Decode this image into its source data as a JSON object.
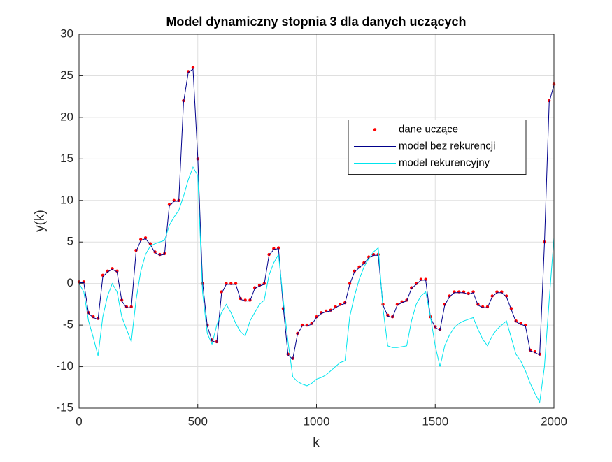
{
  "chart_data": {
    "type": "line",
    "title": "Model dynamiczny stopnia 3 dla danych uczących",
    "x_label": "k",
    "y_label": "y(k)",
    "xlim": [
      0,
      2000
    ],
    "xticks": [
      0,
      500,
      1000,
      1500,
      2000
    ],
    "ylim": [
      -15,
      30
    ],
    "yticks": [
      -15,
      -10,
      -5,
      0,
      5,
      10,
      15,
      20,
      25,
      30
    ],
    "grid": true,
    "legend_location": "east",
    "x": [
      0,
      20,
      40,
      60,
      80,
      100,
      120,
      140,
      160,
      180,
      200,
      220,
      240,
      260,
      280,
      300,
      320,
      340,
      360,
      380,
      400,
      420,
      440,
      460,
      480,
      500,
      520,
      540,
      560,
      580,
      600,
      620,
      640,
      660,
      680,
      700,
      720,
      740,
      760,
      780,
      800,
      820,
      840,
      860,
      880,
      900,
      920,
      940,
      960,
      980,
      1000,
      1020,
      1040,
      1060,
      1080,
      1100,
      1120,
      1140,
      1160,
      1180,
      1200,
      1220,
      1240,
      1260,
      1280,
      1300,
      1320,
      1340,
      1360,
      1380,
      1400,
      1420,
      1440,
      1460,
      1480,
      1500,
      1520,
      1540,
      1560,
      1580,
      1600,
      1620,
      1640,
      1660,
      1680,
      1700,
      1720,
      1740,
      1760,
      1780,
      1800,
      1820,
      1840,
      1860,
      1880,
      1900,
      1920,
      1940,
      1960,
      1980,
      2000
    ],
    "series": [
      {
        "name": "dane uczące",
        "color": "#ff0000",
        "marker": "dot",
        "values": [
          0.2,
          0.2,
          -3.5,
          -4,
          -4.2,
          1,
          1.5,
          1.8,
          1.5,
          -2,
          -2.8,
          -2.8,
          4,
          5.3,
          5.5,
          4.8,
          3.8,
          3.5,
          3.6,
          9.5,
          10,
          10,
          22,
          25.5,
          26,
          15,
          0,
          -5,
          -6.8,
          -7,
          -1,
          0,
          0,
          0,
          -1.8,
          -2,
          -2,
          -0.5,
          -0.2,
          0,
          3.5,
          4.2,
          4.3,
          -3,
          -8.5,
          -9,
          -6,
          -5,
          -5,
          -4.8,
          -4,
          -3.5,
          -3.3,
          -3.2,
          -2.8,
          -2.5,
          -2.3,
          0,
          1.5,
          2,
          2.5,
          3.2,
          3.5,
          3.5,
          -2.5,
          -3.8,
          -4,
          -2.5,
          -2.2,
          -2,
          -0.5,
          0,
          0.5,
          0.5,
          -4,
          -5.2,
          -5.5,
          -2.5,
          -1.5,
          -1,
          -1,
          -1,
          -1.2,
          -1,
          -2.5,
          -2.8,
          -2.8,
          -1.5,
          -1,
          -1,
          -1.5,
          -3,
          -4.5,
          -4.8,
          -5,
          -8,
          -8.2,
          -8.5,
          5,
          22,
          24
        ]
      },
      {
        "name": "model bez rekurencji",
        "color": "#00008b",
        "marker": "line",
        "values": [
          0.1,
          0.1,
          -3.6,
          -4.1,
          -4.3,
          0.8,
          1.4,
          1.7,
          1.4,
          -2.1,
          -2.9,
          -2.9,
          3.8,
          5.2,
          5.4,
          4.7,
          3.7,
          3.4,
          3.5,
          9.3,
          9.9,
          9.9,
          21.8,
          25.4,
          25.8,
          15.2,
          0.2,
          -5.1,
          -6.9,
          -7.1,
          -1.2,
          -0.1,
          -0.1,
          -0.1,
          -1.9,
          -2.1,
          -2.1,
          -0.6,
          -0.3,
          -0.1,
          3.4,
          4.1,
          4.2,
          -2.8,
          -8.6,
          -9.1,
          -6.1,
          -5.1,
          -5.1,
          -4.9,
          -4.1,
          -3.6,
          -3.4,
          -3.3,
          -2.9,
          -2.6,
          -2.4,
          -0.1,
          1.4,
          1.9,
          2.4,
          3.1,
          3.4,
          3.4,
          -2.6,
          -3.9,
          -4.1,
          -2.6,
          -2.3,
          -2.1,
          -0.6,
          -0.1,
          0.4,
          0.4,
          -4.1,
          -5.3,
          -5.6,
          -2.6,
          -1.6,
          -1.1,
          -1.1,
          -1.1,
          -1.3,
          -1.1,
          -2.6,
          -2.9,
          -2.9,
          -1.6,
          -1.1,
          -1.1,
          -1.6,
          -3.1,
          -4.6,
          -4.9,
          -5.1,
          -8.1,
          -8.3,
          -8.6,
          4.8,
          21.8,
          23.9
        ]
      },
      {
        "name": "model rekurencyjny",
        "color": "#00e5ee",
        "marker": "line",
        "values": [
          0,
          -1,
          -4.5,
          -6.5,
          -8.7,
          -4,
          -1.5,
          0,
          -1,
          -4,
          -5.5,
          -7,
          -2,
          1.5,
          3.5,
          4.5,
          4.8,
          5,
          5.2,
          7,
          8,
          8.8,
          10.5,
          12.5,
          14,
          13,
          -1,
          -6,
          -7.3,
          -5,
          -3.5,
          -2.5,
          -3.5,
          -4.8,
          -5.8,
          -6.3,
          -4.5,
          -3.5,
          -2.5,
          -2,
          1,
          2.5,
          3.5,
          -2,
          -7,
          -11.2,
          -11.8,
          -12.1,
          -12.3,
          -12,
          -11.5,
          -11.3,
          -11,
          -10.5,
          -10,
          -9.5,
          -9.3,
          -4,
          -1.5,
          0.5,
          2,
          3,
          3.8,
          4.3,
          -3,
          -7.5,
          -7.7,
          -7.7,
          -7.6,
          -7.5,
          -4.5,
          -2.5,
          -1.5,
          -1,
          -4,
          -7.5,
          -10,
          -7.5,
          -6.2,
          -5.3,
          -4.8,
          -4.5,
          -4.3,
          -4.1,
          -5.5,
          -6.7,
          -7.5,
          -6.3,
          -5.5,
          -5,
          -4.5,
          -6.5,
          -8.5,
          -9.3,
          -10.5,
          -12,
          -13.2,
          -14.3,
          -10,
          -2,
          5.5
        ]
      }
    ]
  }
}
